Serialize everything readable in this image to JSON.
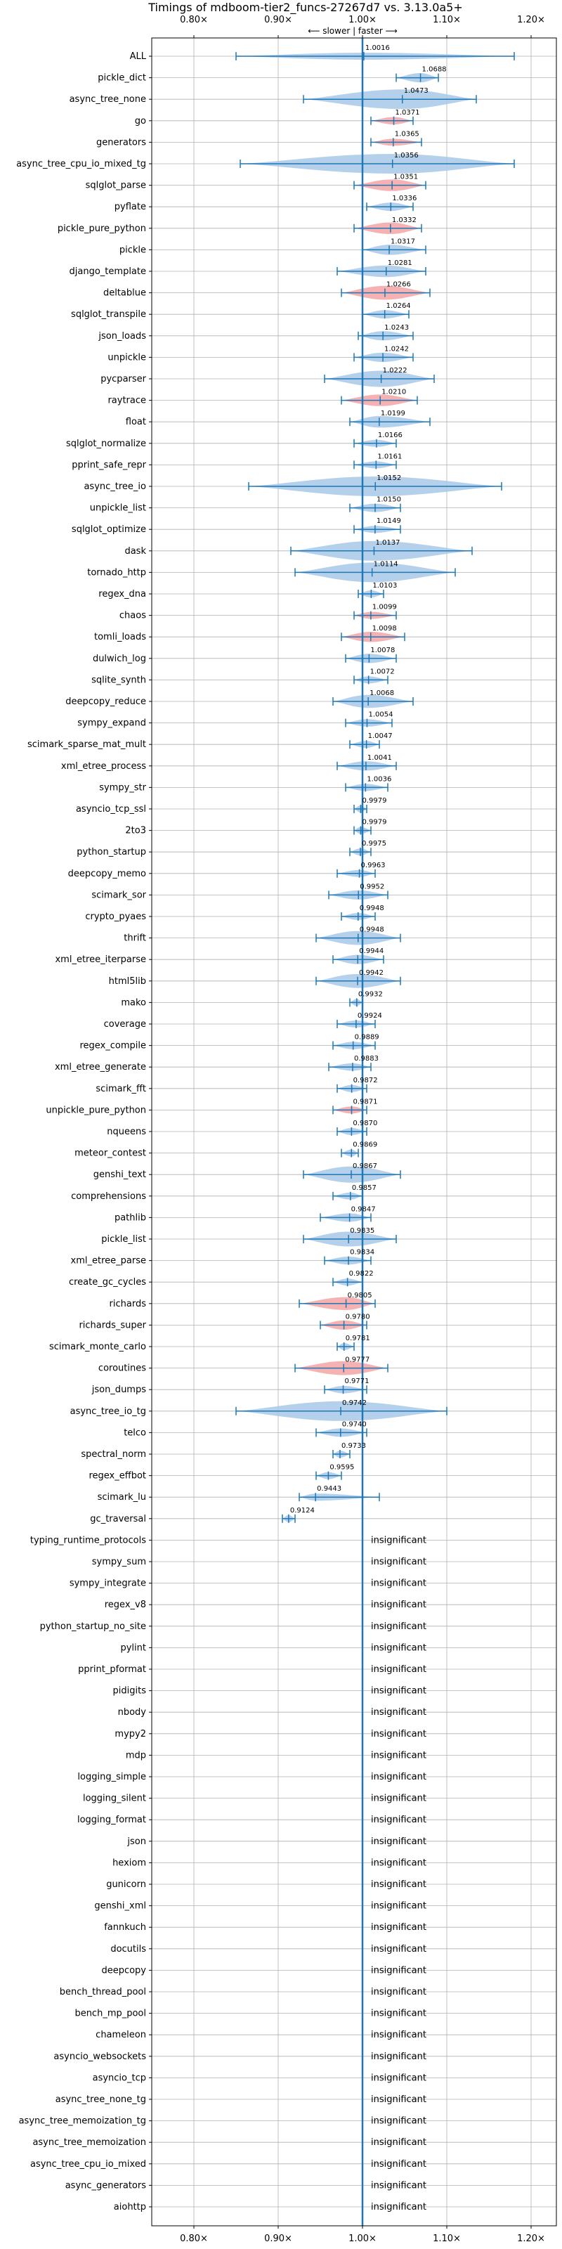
{
  "chart_data": {
    "type": "violin",
    "title": "Timings of mdboom-tier2_funcs-27267d7 vs. 3.13.0a5+",
    "direction_label": "⟵ slower | faster ⟶",
    "xlim": [
      0.75,
      1.23
    ],
    "x_ticks": [
      0.8,
      0.9,
      1.0,
      1.1,
      1.2
    ],
    "x_tick_labels": [
      "0.80×",
      "0.90×",
      "1.00×",
      "1.10×",
      "1.20×"
    ],
    "reference_line": 1.0,
    "grid": true,
    "significant_color": "#a8c8e8",
    "slower_color": "#f4a4a4",
    "errorbar_color": "#1f77b4",
    "insignificant_label": "insignificant",
    "benchmarks": [
      {
        "name": "ALL",
        "value": 1.0016,
        "label": "1.0016",
        "lo": 0.85,
        "hi": 1.18,
        "wide": 0.012,
        "color": "blue"
      },
      {
        "name": "pickle_dict",
        "value": 1.0688,
        "label": "1.0688",
        "lo": 1.04,
        "hi": 1.09,
        "wide": 0.02,
        "color": "blue"
      },
      {
        "name": "async_tree_none",
        "value": 1.0473,
        "label": "1.0473",
        "lo": 0.93,
        "hi": 1.135,
        "wide": 0.055,
        "color": "blue"
      },
      {
        "name": "go",
        "value": 1.0371,
        "label": "1.0371",
        "lo": 1.01,
        "hi": 1.06,
        "wide": 0.016,
        "color": "red"
      },
      {
        "name": "generators",
        "value": 1.0365,
        "label": "1.0365",
        "lo": 1.01,
        "hi": 1.07,
        "wide": 0.015,
        "color": "red"
      },
      {
        "name": "async_tree_cpu_io_mixed_tg",
        "value": 1.0356,
        "label": "1.0356",
        "lo": 0.855,
        "hi": 1.18,
        "wide": 0.09,
        "color": "blue"
      },
      {
        "name": "sqlglot_parse",
        "value": 1.0351,
        "label": "1.0351",
        "lo": 0.99,
        "hi": 1.075,
        "wide": 0.025,
        "color": "red"
      },
      {
        "name": "pyflate",
        "value": 1.0336,
        "label": "1.0336",
        "lo": 1.005,
        "hi": 1.06,
        "wide": 0.018,
        "color": "blue"
      },
      {
        "name": "pickle_pure_python",
        "value": 1.0332,
        "label": "1.0332",
        "lo": 0.99,
        "hi": 1.07,
        "wide": 0.025,
        "color": "red"
      },
      {
        "name": "pickle",
        "value": 1.0317,
        "label": "1.0317",
        "lo": 1.0,
        "hi": 1.075,
        "wide": 0.022,
        "color": "blue"
      },
      {
        "name": "django_template",
        "value": 1.0281,
        "label": "1.0281",
        "lo": 0.97,
        "hi": 1.075,
        "wide": 0.025,
        "color": "blue"
      },
      {
        "name": "deltablue",
        "value": 1.0266,
        "label": "1.0266",
        "lo": 0.975,
        "hi": 1.08,
        "wide": 0.03,
        "color": "red"
      },
      {
        "name": "sqlglot_transpile",
        "value": 1.0264,
        "label": "1.0264",
        "lo": 1.0,
        "hi": 1.055,
        "wide": 0.018,
        "color": "blue"
      },
      {
        "name": "json_loads",
        "value": 1.0243,
        "label": "1.0243",
        "lo": 0.995,
        "hi": 1.06,
        "wide": 0.02,
        "color": "blue"
      },
      {
        "name": "unpickle",
        "value": 1.0242,
        "label": "1.0242",
        "lo": 0.99,
        "hi": 1.06,
        "wide": 0.02,
        "color": "blue"
      },
      {
        "name": "pycparser",
        "value": 1.0222,
        "label": "1.0222",
        "lo": 0.955,
        "hi": 1.085,
        "wide": 0.035,
        "color": "blue"
      },
      {
        "name": "raytrace",
        "value": 1.021,
        "label": "1.0210",
        "lo": 0.975,
        "hi": 1.065,
        "wide": 0.025,
        "color": "red"
      },
      {
        "name": "float",
        "value": 1.0199,
        "label": "1.0199",
        "lo": 0.985,
        "hi": 1.08,
        "wide": 0.025,
        "color": "blue"
      },
      {
        "name": "sqlglot_normalize",
        "value": 1.0166,
        "label": "1.0166",
        "lo": 0.99,
        "hi": 1.04,
        "wide": 0.015,
        "color": "blue"
      },
      {
        "name": "pprint_safe_repr",
        "value": 1.0161,
        "label": "1.0161",
        "lo": 0.99,
        "hi": 1.04,
        "wide": 0.015,
        "color": "blue"
      },
      {
        "name": "async_tree_io",
        "value": 1.0152,
        "label": "1.0152",
        "lo": 0.865,
        "hi": 1.165,
        "wide": 0.075,
        "color": "blue"
      },
      {
        "name": "unpickle_list",
        "value": 1.015,
        "label": "1.0150",
        "lo": 0.985,
        "hi": 1.045,
        "wide": 0.018,
        "color": "blue"
      },
      {
        "name": "sqlglot_optimize",
        "value": 1.0149,
        "label": "1.0149",
        "lo": 0.99,
        "hi": 1.045,
        "wide": 0.015,
        "color": "blue"
      },
      {
        "name": "dask",
        "value": 1.0137,
        "label": "1.0137",
        "lo": 0.915,
        "hi": 1.13,
        "wide": 0.06,
        "color": "blue"
      },
      {
        "name": "tornado_http",
        "value": 1.0114,
        "label": "1.0114",
        "lo": 0.92,
        "hi": 1.11,
        "wide": 0.055,
        "color": "blue"
      },
      {
        "name": "regex_dna",
        "value": 1.0103,
        "label": "1.0103",
        "lo": 0.995,
        "hi": 1.025,
        "wide": 0.01,
        "color": "blue"
      },
      {
        "name": "chaos",
        "value": 1.0099,
        "label": "1.0099",
        "lo": 0.99,
        "hi": 1.04,
        "wide": 0.014,
        "color": "red"
      },
      {
        "name": "tomli_loads",
        "value": 1.0098,
        "label": "1.0098",
        "lo": 0.975,
        "hi": 1.05,
        "wide": 0.022,
        "color": "red"
      },
      {
        "name": "dulwich_log",
        "value": 1.0078,
        "label": "1.0078",
        "lo": 0.98,
        "hi": 1.04,
        "wide": 0.02,
        "color": "blue"
      },
      {
        "name": "sqlite_synth",
        "value": 1.0072,
        "label": "1.0072",
        "lo": 0.99,
        "hi": 1.03,
        "wide": 0.012,
        "color": "blue"
      },
      {
        "name": "deepcopy_reduce",
        "value": 1.0068,
        "label": "1.0068",
        "lo": 0.965,
        "hi": 1.06,
        "wide": 0.028,
        "color": "blue"
      },
      {
        "name": "sympy_expand",
        "value": 1.0054,
        "label": "1.0054",
        "lo": 0.98,
        "hi": 1.035,
        "wide": 0.016,
        "color": "blue"
      },
      {
        "name": "scimark_sparse_mat_mult",
        "value": 1.0047,
        "label": "1.0047",
        "lo": 0.985,
        "hi": 1.02,
        "wide": 0.012,
        "color": "blue"
      },
      {
        "name": "xml_etree_process",
        "value": 1.0041,
        "label": "1.0041",
        "lo": 0.97,
        "hi": 1.04,
        "wide": 0.02,
        "color": "blue"
      },
      {
        "name": "sympy_str",
        "value": 1.0036,
        "label": "1.0036",
        "lo": 0.98,
        "hi": 1.03,
        "wide": 0.015,
        "color": "blue"
      },
      {
        "name": "asyncio_tcp_ssl",
        "value": 0.9979,
        "label": "0.9979",
        "lo": 0.99,
        "hi": 1.005,
        "wide": 0.006,
        "color": "blue"
      },
      {
        "name": "2to3",
        "value": 0.9979,
        "label": "0.9979",
        "lo": 0.99,
        "hi": 1.01,
        "wide": 0.007,
        "color": "blue"
      },
      {
        "name": "python_startup",
        "value": 0.9975,
        "label": "0.9975",
        "lo": 0.985,
        "hi": 1.01,
        "wide": 0.008,
        "color": "blue"
      },
      {
        "name": "deepcopy_memo",
        "value": 0.9963,
        "label": "0.9963",
        "lo": 0.97,
        "hi": 1.015,
        "wide": 0.014,
        "color": "blue"
      },
      {
        "name": "scimark_sor",
        "value": 0.9952,
        "label": "0.9952",
        "lo": 0.96,
        "hi": 1.03,
        "wide": 0.02,
        "color": "blue"
      },
      {
        "name": "crypto_pyaes",
        "value": 0.9948,
        "label": "0.9948",
        "lo": 0.975,
        "hi": 1.015,
        "wide": 0.012,
        "color": "blue"
      },
      {
        "name": "thrift",
        "value": 0.9948,
        "label": "0.9948",
        "lo": 0.945,
        "hi": 1.045,
        "wide": 0.03,
        "color": "blue"
      },
      {
        "name": "xml_etree_iterparse",
        "value": 0.9944,
        "label": "0.9944",
        "lo": 0.965,
        "hi": 1.025,
        "wide": 0.02,
        "color": "blue"
      },
      {
        "name": "html5lib",
        "value": 0.9942,
        "label": "0.9942",
        "lo": 0.945,
        "hi": 1.045,
        "wide": 0.03,
        "color": "blue"
      },
      {
        "name": "mako",
        "value": 0.9932,
        "label": "0.9932",
        "lo": 0.985,
        "hi": 1.0,
        "wide": 0.006,
        "color": "blue"
      },
      {
        "name": "coverage",
        "value": 0.9924,
        "label": "0.9924",
        "lo": 0.97,
        "hi": 1.015,
        "wide": 0.014,
        "color": "blue"
      },
      {
        "name": "regex_compile",
        "value": 0.9889,
        "label": "0.9889",
        "lo": 0.965,
        "hi": 1.015,
        "wide": 0.016,
        "color": "blue"
      },
      {
        "name": "xml_etree_generate",
        "value": 0.9883,
        "label": "0.9883",
        "lo": 0.96,
        "hi": 1.01,
        "wide": 0.016,
        "color": "blue"
      },
      {
        "name": "scimark_fft",
        "value": 0.9872,
        "label": "0.9872",
        "lo": 0.97,
        "hi": 1.005,
        "wide": 0.011,
        "color": "blue"
      },
      {
        "name": "unpickle_pure_python",
        "value": 0.9871,
        "label": "0.9871",
        "lo": 0.965,
        "hi": 1.005,
        "wide": 0.013,
        "color": "red"
      },
      {
        "name": "nqueens",
        "value": 0.987,
        "label": "0.9870",
        "lo": 0.97,
        "hi": 1.005,
        "wide": 0.011,
        "color": "blue"
      },
      {
        "name": "meteor_contest",
        "value": 0.9869,
        "label": "0.9869",
        "lo": 0.975,
        "hi": 0.995,
        "wide": 0.007,
        "color": "blue"
      },
      {
        "name": "genshi_text",
        "value": 0.9867,
        "label": "0.9867",
        "lo": 0.93,
        "hi": 1.045,
        "wide": 0.035,
        "color": "blue"
      },
      {
        "name": "comprehensions",
        "value": 0.9857,
        "label": "0.9857",
        "lo": 0.965,
        "hi": 1.0,
        "wide": 0.011,
        "color": "blue"
      },
      {
        "name": "pathlib",
        "value": 0.9847,
        "label": "0.9847",
        "lo": 0.95,
        "hi": 1.01,
        "wide": 0.018,
        "color": "blue"
      },
      {
        "name": "pickle_list",
        "value": 0.9835,
        "label": "0.9835",
        "lo": 0.93,
        "hi": 1.04,
        "wide": 0.032,
        "color": "blue"
      },
      {
        "name": "xml_etree_parse",
        "value": 0.9834,
        "label": "0.9834",
        "lo": 0.955,
        "hi": 1.01,
        "wide": 0.017,
        "color": "blue"
      },
      {
        "name": "create_gc_cycles",
        "value": 0.9822,
        "label": "0.9822",
        "lo": 0.965,
        "hi": 1.0,
        "wide": 0.011,
        "color": "blue"
      },
      {
        "name": "richards",
        "value": 0.9805,
        "label": "0.9805",
        "lo": 0.925,
        "hi": 1.015,
        "wide": 0.028,
        "color": "red"
      },
      {
        "name": "richards_super",
        "value": 0.978,
        "label": "0.9780",
        "lo": 0.95,
        "hi": 1.005,
        "wide": 0.02,
        "color": "red"
      },
      {
        "name": "scimark_monte_carlo",
        "value": 0.9781,
        "label": "0.9781",
        "lo": 0.97,
        "hi": 0.99,
        "wide": 0.007,
        "color": "blue"
      },
      {
        "name": "coroutines",
        "value": 0.9777,
        "label": "0.9777",
        "lo": 0.92,
        "hi": 1.03,
        "wide": 0.03,
        "color": "red"
      },
      {
        "name": "json_dumps",
        "value": 0.9771,
        "label": "0.9771",
        "lo": 0.955,
        "hi": 1.005,
        "wide": 0.016,
        "color": "blue"
      },
      {
        "name": "async_tree_io_tg",
        "value": 0.9742,
        "label": "0.9742",
        "lo": 0.85,
        "hi": 1.1,
        "wide": 0.07,
        "color": "blue"
      },
      {
        "name": "telco",
        "value": 0.974,
        "label": "0.9740",
        "lo": 0.945,
        "hi": 1.005,
        "wide": 0.018,
        "color": "blue"
      },
      {
        "name": "spectral_norm",
        "value": 0.9733,
        "label": "0.9733",
        "lo": 0.965,
        "hi": 0.985,
        "wide": 0.006,
        "color": "blue"
      },
      {
        "name": "regex_effbot",
        "value": 0.9595,
        "label": "0.9595",
        "lo": 0.945,
        "hi": 0.975,
        "wide": 0.009,
        "color": "blue"
      },
      {
        "name": "scimark_lu",
        "value": 0.9443,
        "label": "0.9443",
        "lo": 0.925,
        "hi": 1.02,
        "wide": 0.014,
        "color": "blue"
      },
      {
        "name": "gc_traversal",
        "value": 0.9124,
        "label": "0.9124",
        "lo": 0.905,
        "hi": 0.92,
        "wide": 0.004,
        "color": "blue"
      }
    ],
    "insignificant": [
      "typing_runtime_protocols",
      "sympy_sum",
      "sympy_integrate",
      "regex_v8",
      "python_startup_no_site",
      "pylint",
      "pprint_pformat",
      "pidigits",
      "nbody",
      "mypy2",
      "mdp",
      "logging_simple",
      "logging_silent",
      "logging_format",
      "json",
      "hexiom",
      "gunicorn",
      "genshi_xml",
      "fannkuch",
      "docutils",
      "deepcopy",
      "bench_thread_pool",
      "bench_mp_pool",
      "chameleon",
      "asyncio_websockets",
      "asyncio_tcp",
      "async_tree_none_tg",
      "async_tree_memoization_tg",
      "async_tree_memoization",
      "async_tree_cpu_io_mixed",
      "async_generators",
      "aiohttp"
    ]
  }
}
